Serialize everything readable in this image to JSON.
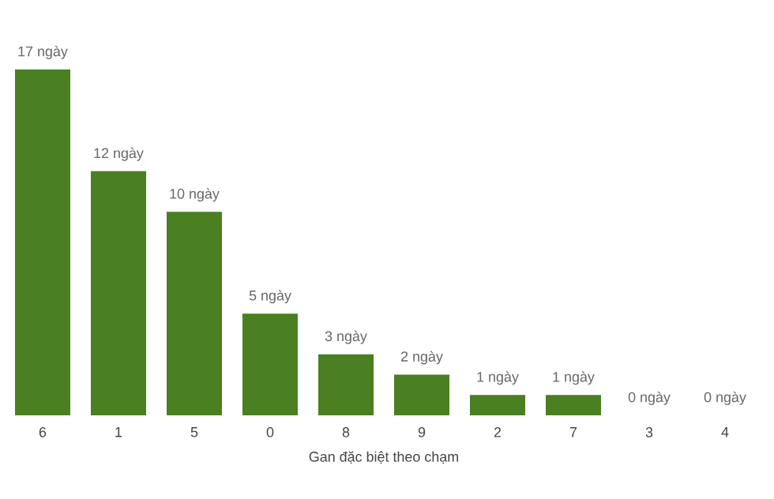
{
  "chart_data": {
    "type": "bar",
    "xlabel": "Gan đặc biệt theo chạm",
    "categories": [
      "6",
      "1",
      "5",
      "0",
      "8",
      "9",
      "2",
      "7",
      "3",
      "4"
    ],
    "values": [
      17,
      12,
      10,
      5,
      3,
      2,
      1,
      1,
      0,
      0
    ],
    "value_labels": [
      "17 ngày",
      "12 ngày",
      "10 ngày",
      "5 ngày",
      "3 ngày",
      "2 ngày",
      "1 ngày",
      "1 ngày",
      "0 ngày",
      "0 ngày"
    ],
    "color": "#4a7f22"
  }
}
